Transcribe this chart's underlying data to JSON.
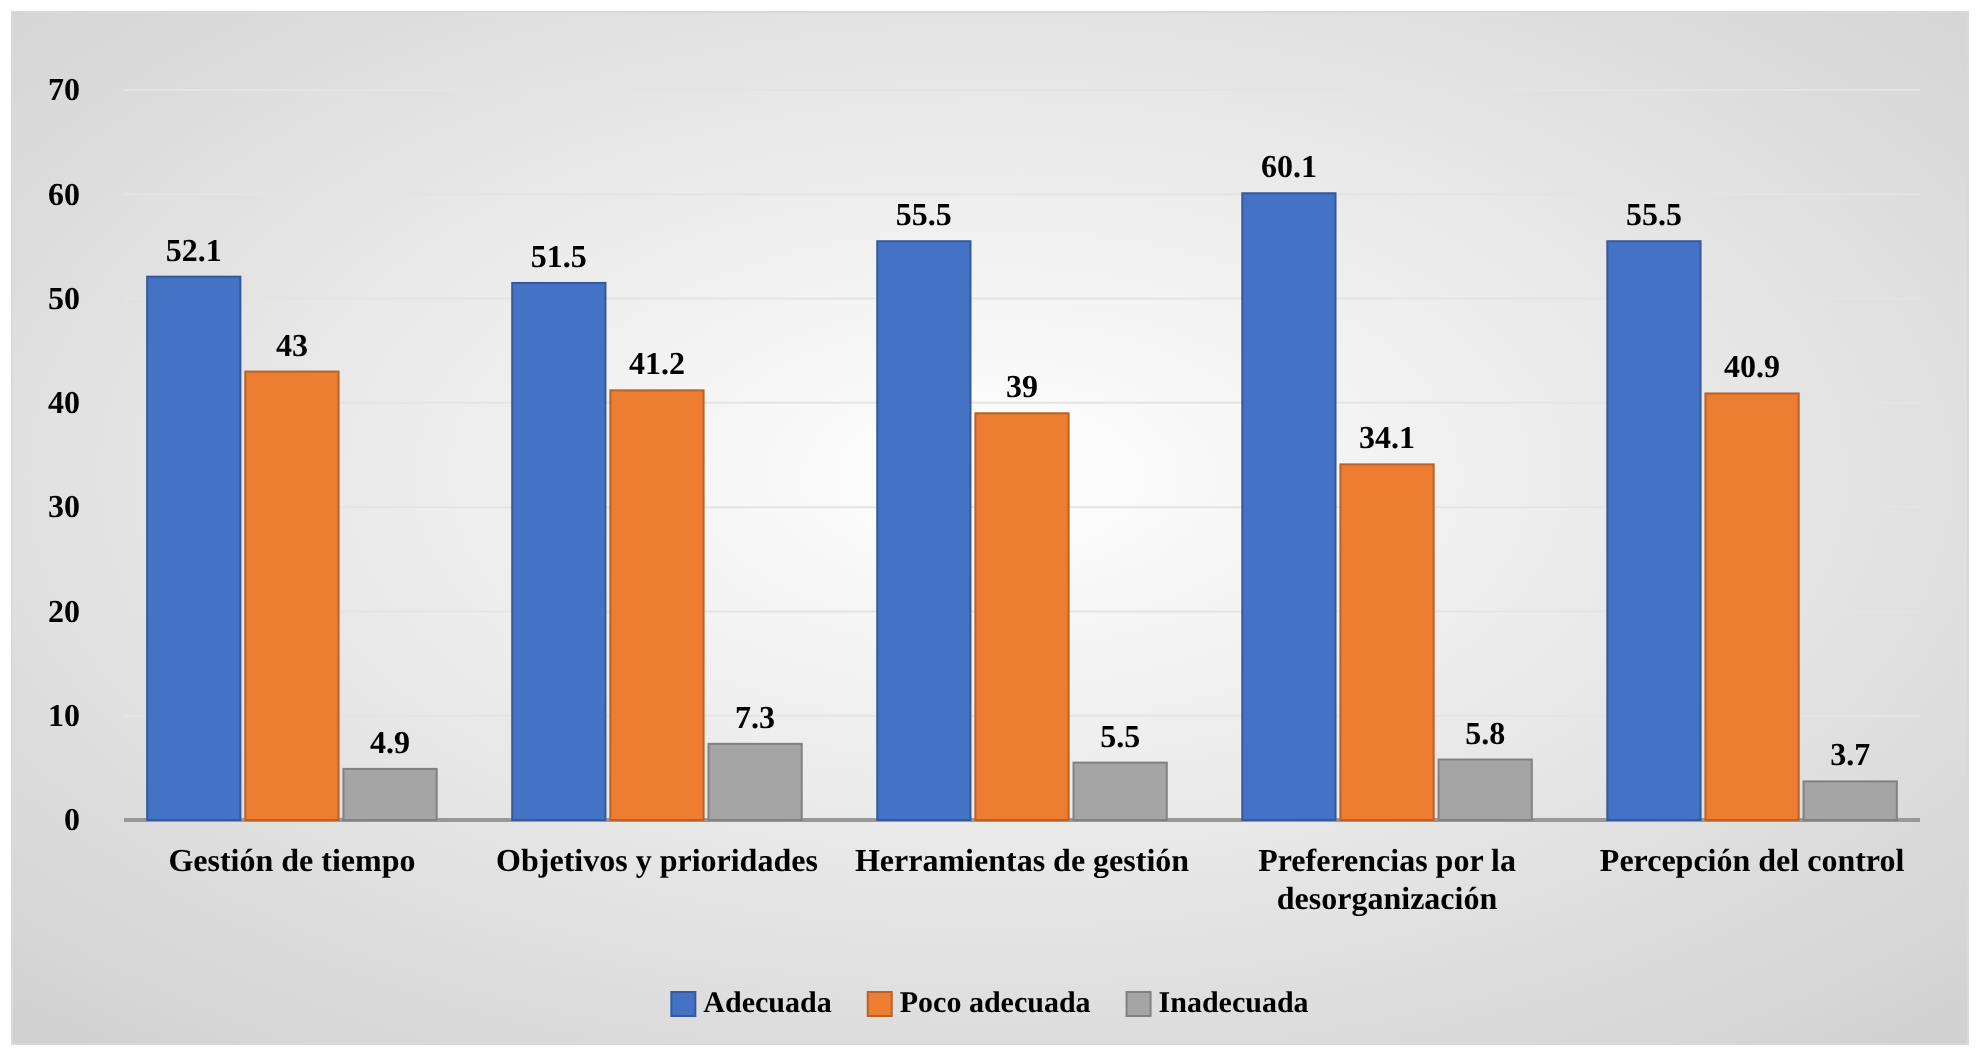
{
  "chart_data": {
    "type": "bar",
    "categories": [
      "Gestión de tiempo",
      "Objetivos y prioridades",
      "Herramientas de gestión",
      "Preferencias por la desorganización",
      "Percepción del control"
    ],
    "series": [
      {
        "name": "Adecuada",
        "color": "#4472c4",
        "values": [
          52.1,
          51.5,
          55.5,
          60.1,
          55.5
        ]
      },
      {
        "name": "Poco adecuada",
        "color": "#ed7d31",
        "values": [
          43,
          41.2,
          39,
          34.1,
          40.9
        ]
      },
      {
        "name": "Inadecuada",
        "color": "#a5a5a5",
        "values": [
          4.9,
          7.3,
          5.5,
          5.8,
          3.7
        ]
      }
    ],
    "ylim": [
      0,
      70
    ],
    "yticks": [
      0,
      10,
      20,
      30,
      40,
      50,
      60,
      70
    ],
    "grid": "y",
    "legend": "bottom",
    "data_labels": true
  }
}
